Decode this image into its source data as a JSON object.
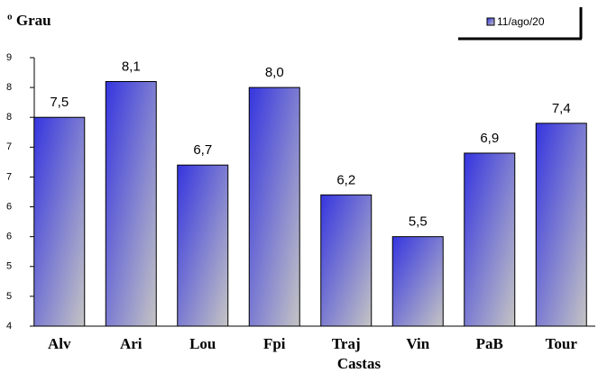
{
  "chart_data": {
    "type": "bar",
    "title": "º Grau",
    "x_label": "Castas",
    "categories": [
      "Alv",
      "Ari",
      "Lou",
      "Fpi",
      "Traj",
      "Vin",
      "PaB",
      "Tour"
    ],
    "series": [
      {
        "name": "11/ago/20",
        "color": "#3535e0",
        "values": [
          7.5,
          8.1,
          6.7,
          8.0,
          6.2,
          5.5,
          6.9,
          7.4
        ],
        "value_labels": [
          "7,5",
          "8,1",
          "6,7",
          "8,0",
          "6,2",
          "5,5",
          "6,9",
          "7,4"
        ]
      }
    ],
    "ylim": [
      4,
      8.5
    ],
    "yticks": [
      4,
      {
        "value": 4.5,
        "label": "5"
      },
      5,
      {
        "value": 5.5,
        "label": "6"
      },
      6,
      {
        "value": 6.5,
        "label": "7"
      },
      7,
      {
        "value": 7.5,
        "label": "8"
      },
      8,
      {
        "value": 8.5,
        "label": "9"
      }
    ],
    "legend": "top-right"
  }
}
